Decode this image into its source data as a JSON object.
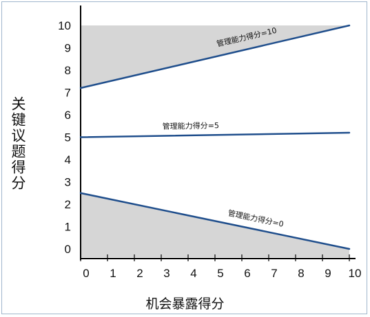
{
  "chart_data": {
    "type": "line",
    "xlabel": "机会暴露得分",
    "ylabel": "关键议题得分",
    "xlim": [
      0,
      10
    ],
    "ylim": [
      0,
      10
    ],
    "x_ticks": [
      "0",
      "1",
      "2",
      "3",
      "4",
      "5",
      "6",
      "7",
      "8",
      "9",
      "10"
    ],
    "y_ticks": [
      "0",
      "1",
      "2",
      "3",
      "4",
      "5",
      "6",
      "7",
      "8",
      "9",
      "10"
    ],
    "series": [
      {
        "name": "管理能力得分=10",
        "x": [
          0,
          10
        ],
        "y": [
          7.2,
          10
        ]
      },
      {
        "name": "管理能力得分=5",
        "x": [
          0,
          10
        ],
        "y": [
          5,
          5.2
        ]
      },
      {
        "name": "管理能力得分=0",
        "x": [
          0,
          10
        ],
        "y": [
          2.5,
          0
        ]
      }
    ],
    "line_color": "#1f4e8c",
    "fill_color": "#d6d6d6",
    "grid": false
  }
}
